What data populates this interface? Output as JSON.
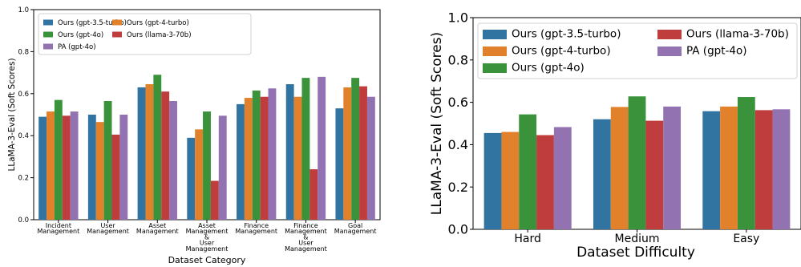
{
  "series_colors": [
    "#3274a1",
    "#e1812c",
    "#3a923a",
    "#c03d3e",
    "#9372b2"
  ],
  "chart_data": [
    {
      "type": "bar",
      "xlabel": "Dataset Category",
      "ylabel": "LLaMA-3-Eval (Soft Scores)",
      "ylim": [
        0,
        1.0
      ],
      "yticks": [
        "0.0",
        "0.2",
        "0.4",
        "0.6",
        "0.8",
        "1.0"
      ],
      "categories": [
        "Incident\nManagement",
        "User\nManagement",
        "Asset\nManagement",
        "Asset\nManagement\n&\nUser\nManagement",
        "Finance\nManagement",
        "Finance\nManagement\n&\nUser\nManagement",
        "Goal\nManagement"
      ],
      "legend_position": "top-left",
      "legend_columns": 3,
      "series": [
        {
          "name": "Ours (gpt-3.5-turbo)",
          "values": [
            0.49,
            0.5,
            0.63,
            0.39,
            0.55,
            0.645,
            0.53
          ]
        },
        {
          "name": "Ours (gpt-4-turbo)",
          "values": [
            0.515,
            0.465,
            0.645,
            0.43,
            0.58,
            0.585,
            0.63
          ]
        },
        {
          "name": "Ours (gpt-4o)",
          "values": [
            0.57,
            0.565,
            0.69,
            0.515,
            0.615,
            0.675,
            0.675
          ]
        },
        {
          "name": "Ours (llama-3-70b)",
          "values": [
            0.495,
            0.405,
            0.61,
            0.185,
            0.585,
            0.24,
            0.635
          ]
        },
        {
          "name": "PA (gpt-4o)",
          "values": [
            0.515,
            0.5,
            0.565,
            0.495,
            0.625,
            0.68,
            0.585
          ]
        }
      ]
    },
    {
      "type": "bar",
      "xlabel": "Dataset Difficulty",
      "ylabel": "LLaMA-3-Eval (Soft Scores)",
      "ylim": [
        0,
        1.0
      ],
      "yticks": [
        "0.0",
        "0.2",
        "0.4",
        "0.6",
        "0.8",
        "1.0"
      ],
      "categories": [
        "Hard",
        "Medium",
        "Easy"
      ],
      "legend_position": "top",
      "legend_columns": 2,
      "series": [
        {
          "name": "Ours (gpt-3.5-turbo)",
          "values": [
            0.455,
            0.52,
            0.558
          ]
        },
        {
          "name": "Ours (gpt-4-turbo)",
          "values": [
            0.46,
            0.578,
            0.58
          ]
        },
        {
          "name": "Ours (gpt-4o)",
          "values": [
            0.543,
            0.628,
            0.625
          ]
        },
        {
          "name": "Ours (llama-3-70b)",
          "values": [
            0.445,
            0.513,
            0.563
          ]
        },
        {
          "name": "PA (gpt-4o)",
          "values": [
            0.483,
            0.58,
            0.567
          ]
        }
      ]
    }
  ]
}
